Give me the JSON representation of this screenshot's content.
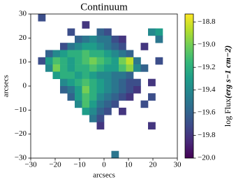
{
  "chart_data": {
    "type": "heatmap",
    "title": "Continuum",
    "xlabel": "arcsecs",
    "ylabel": "arcsecs",
    "cbar_label": "log Flux",
    "cbar_unit": "(erg s−1 cm−2)",
    "colormap": "viridis",
    "xlim": [
      -30,
      30
    ],
    "ylim": [
      -30,
      30
    ],
    "clim": [
      -20.0,
      -18.73
    ],
    "xticks": [
      {
        "value": -30,
        "label": "−30"
      },
      {
        "value": -20,
        "label": "−20"
      },
      {
        "value": -10,
        "label": "−10"
      },
      0,
      10,
      20,
      30
    ],
    "yticks": [
      {
        "value": -30,
        "label": "−30"
      },
      {
        "value": -20,
        "label": "−20"
      },
      {
        "value": -10,
        "label": "−10"
      },
      0,
      10,
      20,
      30
    ],
    "cticks": [
      {
        "value": -20.0,
        "label": "−20.0"
      },
      {
        "value": -19.8,
        "label": "−19.8"
      },
      {
        "value": -19.6,
        "label": "−19.6"
      },
      {
        "value": -19.4,
        "label": "−19.4"
      },
      {
        "value": -19.2,
        "label": "−19.2"
      },
      {
        "value": -19.0,
        "label": "−19.0"
      },
      {
        "value": -18.8,
        "label": "−18.8"
      }
    ],
    "x": [
      -28.5,
      -25.5,
      -22.5,
      -19.5,
      -16.5,
      -13.5,
      -10.5,
      -7.5,
      -4.5,
      -1.5,
      1.5,
      4.5,
      7.5,
      10.5,
      13.5,
      16.5,
      19.5,
      22.5,
      25.5,
      28.5
    ],
    "y": [
      28.5,
      25.5,
      22.5,
      19.5,
      16.5,
      13.5,
      10.5,
      7.5,
      4.5,
      1.5,
      -1.5,
      -4.5,
      -7.5,
      -10.5,
      -13.5,
      -16.5,
      -19.5,
      -22.5,
      -25.5,
      -28.5
    ],
    "z": [
      [
        null,
        -19.7,
        null,
        null,
        null,
        null,
        null,
        null,
        null,
        null,
        null,
        null,
        null,
        null,
        null,
        null,
        null,
        null,
        null,
        null
      ],
      [
        null,
        null,
        null,
        null,
        null,
        null,
        null,
        -19.8,
        null,
        null,
        null,
        null,
        null,
        null,
        null,
        null,
        null,
        null,
        null,
        null
      ],
      [
        null,
        null,
        null,
        null,
        null,
        -19.7,
        null,
        null,
        null,
        -19.6,
        -19.7,
        null,
        null,
        null,
        null,
        null,
        -19.4,
        -19.3,
        null,
        null
      ],
      [
        null,
        null,
        null,
        null,
        null,
        null,
        -19.6,
        -19.5,
        -19.4,
        -19.5,
        -19.5,
        -19.7,
        -19.8,
        null,
        null,
        null,
        null,
        -19.5,
        null,
        null
      ],
      [
        null,
        null,
        null,
        null,
        -19.7,
        -19.5,
        -19.4,
        -19.3,
        -19.3,
        -19.4,
        -19.5,
        -19.6,
        -19.7,
        null,
        null,
        -19.8,
        null,
        null,
        null,
        null
      ],
      [
        null,
        null,
        -19.6,
        -19.4,
        -19.3,
        -19.2,
        -19.2,
        -19.1,
        -19.2,
        -19.2,
        -19.3,
        -19.4,
        -19.5,
        -19.6,
        null,
        null,
        null,
        null,
        null,
        null
      ],
      [
        null,
        -19.7,
        -19.3,
        -19.1,
        -19.2,
        -19.3,
        -19.2,
        -19.1,
        -19.0,
        -19.1,
        -19.2,
        -19.3,
        -19.0,
        -18.85,
        -19.5,
        null,
        null,
        -19.7,
        null,
        null
      ],
      [
        null,
        null,
        -19.4,
        -19.0,
        -19.2,
        -19.3,
        -19.2,
        -19.2,
        -19.1,
        -19.2,
        -19.3,
        -19.3,
        -19.1,
        -18.95,
        -19.4,
        -19.6,
        null,
        null,
        null,
        null
      ],
      [
        null,
        null,
        null,
        -19.3,
        -19.2,
        -19.2,
        -19.3,
        -19.2,
        -19.3,
        -19.4,
        -19.4,
        -19.5,
        -19.5,
        -19.6,
        null,
        null,
        null,
        null,
        null,
        null
      ],
      [
        null,
        null,
        null,
        null,
        -19.4,
        -19.3,
        -19.2,
        -19.1,
        -19.2,
        -19.3,
        -19.4,
        -19.5,
        -19.6,
        -19.7,
        -19.7,
        null,
        -19.8,
        null,
        null,
        null
      ],
      [
        null,
        null,
        null,
        null,
        -19.6,
        -19.5,
        -19.3,
        -19.0,
        -19.2,
        -19.3,
        -19.4,
        -19.5,
        -19.6,
        -19.7,
        -19.8,
        null,
        null,
        null,
        null,
        null
      ],
      [
        null,
        null,
        null,
        null,
        null,
        -19.6,
        -19.3,
        -19.1,
        -19.2,
        -19.4,
        -19.5,
        -19.6,
        -19.7,
        -19.8,
        null,
        null,
        -19.7,
        null,
        null,
        null
      ],
      [
        null,
        null,
        null,
        null,
        null,
        null,
        -19.4,
        -19.1,
        -19.3,
        -19.5,
        -19.6,
        -19.7,
        null,
        null,
        null,
        -19.7,
        null,
        null,
        null,
        null
      ],
      [
        null,
        null,
        null,
        null,
        null,
        null,
        null,
        -19.3,
        -19.4,
        -19.6,
        -19.7,
        null,
        -19.8,
        null,
        null,
        null,
        null,
        null,
        null,
        null
      ],
      [
        null,
        null,
        null,
        null,
        null,
        null,
        null,
        null,
        -19.5,
        -19.7,
        null,
        null,
        null,
        null,
        null,
        null,
        null,
        null,
        null,
        null
      ],
      [
        null,
        null,
        null,
        null,
        null,
        null,
        null,
        null,
        null,
        -19.8,
        null,
        null,
        null,
        null,
        null,
        null,
        -19.8,
        null,
        null,
        null
      ],
      [
        null,
        null,
        null,
        null,
        null,
        null,
        null,
        null,
        null,
        null,
        null,
        null,
        null,
        null,
        null,
        null,
        null,
        null,
        null,
        null
      ],
      [
        null,
        null,
        null,
        null,
        null,
        null,
        null,
        null,
        null,
        null,
        null,
        null,
        null,
        null,
        null,
        null,
        null,
        null,
        null,
        null
      ],
      [
        null,
        null,
        null,
        null,
        null,
        null,
        null,
        null,
        null,
        null,
        null,
        null,
        null,
        null,
        null,
        null,
        null,
        null,
        null,
        null
      ],
      [
        null,
        null,
        null,
        null,
        null,
        null,
        null,
        null,
        null,
        null,
        null,
        -19.5,
        null,
        null,
        null,
        null,
        null,
        null,
        null,
        null
      ]
    ]
  }
}
